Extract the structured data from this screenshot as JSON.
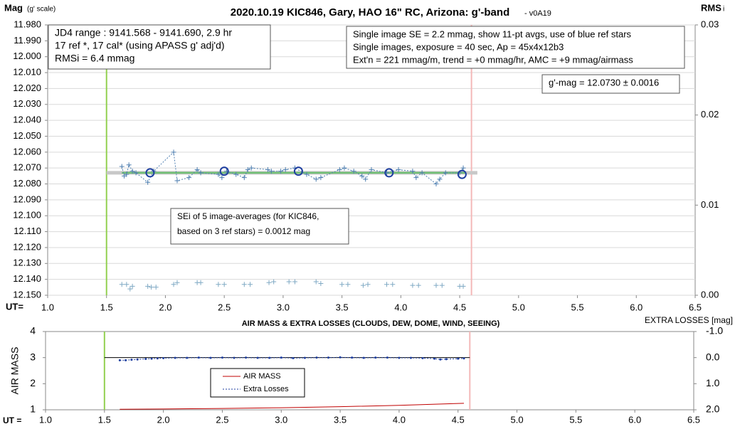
{
  "chart_data": [
    {
      "type": "scatter",
      "title": "2020.10.19 KIC846, Gary, HAO 16\" RC, Arizona: g'-band",
      "subtitle": "- v0A19",
      "y_label": "Mag",
      "y_label_note": "(g' scale)",
      "y2_label": "RMS",
      "y2_label_note": "i",
      "x_label": "UT=",
      "xlim": [
        1.0,
        6.5
      ],
      "xticks": [
        {
          "value": 1,
          "label": "1.0"
        },
        1.5,
        {
          "value": 2,
          "label": "2.0"
        },
        2.5,
        {
          "value": 3,
          "label": "3.0"
        },
        3.5,
        {
          "value": 4,
          "label": "4.0"
        },
        4.5,
        {
          "value": 5,
          "label": "5.0"
        },
        5.5,
        {
          "value": 6,
          "label": "6.0"
        },
        6.5
      ],
      "ylim": [
        11.98,
        12.15
      ],
      "invert_y": true,
      "yticks": [
        {
          "value": 11.98,
          "label": "11.980"
        },
        {
          "value": 11.99,
          "label": "11.990"
        },
        {
          "value": 12.0,
          "label": "12.000"
        },
        {
          "value": 12.01,
          "label": "12.010"
        },
        {
          "value": 12.02,
          "label": "12.020"
        },
        {
          "value": 12.03,
          "label": "12.030"
        },
        {
          "value": 12.04,
          "label": "12.040"
        },
        {
          "value": 12.05,
          "label": "12.050"
        },
        {
          "value": 12.06,
          "label": "12.060"
        },
        {
          "value": 12.07,
          "label": "12.070"
        },
        {
          "value": 12.08,
          "label": "12.080"
        },
        {
          "value": 12.09,
          "label": "12.090"
        },
        {
          "value": 12.1,
          "label": "12.100"
        },
        {
          "value": 12.11,
          "label": "12.110"
        },
        {
          "value": 12.12,
          "label": "12.120"
        },
        {
          "value": 12.13,
          "label": "12.130"
        },
        {
          "value": 12.14,
          "label": "12.140"
        },
        {
          "value": 12.15,
          "label": "12.150"
        }
      ],
      "y2lim": [
        0,
        0.03
      ],
      "y2ticks": [
        {
          "value": 0,
          "label": "0.00"
        },
        0.01,
        0.02,
        0.03
      ],
      "grid": true,
      "vlines": [
        {
          "x": 1.5,
          "color": "#92d050"
        },
        {
          "x": 4.6,
          "color": "#f4b8b8"
        }
      ],
      "series": [
        {
          "color": "#c8c8c8",
          "marker": "none",
          "line": "solid",
          "width": 5,
          "x": [
            1.5,
            4.65
          ],
          "values": [
            12.073,
            12.073
          ]
        },
        {
          "color": "#6fbf73",
          "marker": "none",
          "line": "solid",
          "width": 2.5,
          "x": [
            1.63,
            4.55
          ],
          "values": [
            12.073,
            12.073
          ]
        },
        {
          "color": "#4f7fb0",
          "marker": "plus",
          "line": "dotted",
          "width": 1,
          "x": [
            1.63,
            1.65,
            1.67,
            1.69,
            1.72,
            1.75,
            1.85,
            1.9,
            2.07,
            2.1,
            2.2,
            2.27,
            2.3,
            2.45,
            2.48,
            2.52,
            2.6,
            2.67,
            2.7,
            2.73,
            2.87,
            2.9,
            2.98,
            3.02,
            3.1,
            3.2,
            3.28,
            3.32,
            3.48,
            3.52,
            3.6,
            3.67,
            3.7,
            3.75,
            3.88,
            3.98,
            4.1,
            4.13,
            4.18,
            4.3,
            4.33,
            4.38,
            4.5,
            4.53
          ],
          "values": [
            12.069,
            12.075,
            12.074,
            12.068,
            12.072,
            12.073,
            12.079,
            12.072,
            12.06,
            12.078,
            12.076,
            12.071,
            12.073,
            12.074,
            12.076,
            12.072,
            12.074,
            12.076,
            12.071,
            12.07,
            12.071,
            12.072,
            12.072,
            12.071,
            12.07,
            12.074,
            12.077,
            12.076,
            12.071,
            12.07,
            12.072,
            12.075,
            12.077,
            12.071,
            12.073,
            12.071,
            12.072,
            12.076,
            12.073,
            12.08,
            12.077,
            12.073,
            12.073,
            12.07
          ]
        },
        {
          "color": "#1f3fa0",
          "marker": "circle",
          "line": "none",
          "width": 2,
          "x": [
            1.87,
            2.5,
            3.13,
            3.9,
            4.52
          ],
          "values": [
            12.073,
            12.072,
            12.072,
            12.073,
            12.074
          ]
        },
        {
          "color": "#7fa9c4",
          "marker": "plus",
          "line": "none",
          "width": 1,
          "axis": "y2",
          "x": [
            1.63,
            1.67,
            1.7,
            1.72,
            1.85,
            1.88,
            1.92,
            2.07,
            2.1,
            2.27,
            2.3,
            2.45,
            2.5,
            2.67,
            2.72,
            2.88,
            2.92,
            3.05,
            3.1,
            3.28,
            3.32,
            3.5,
            3.55,
            3.68,
            3.72,
            3.88,
            3.93,
            4.1,
            4.15,
            4.3,
            4.35,
            4.5,
            4.53
          ],
          "values": [
            0.0012,
            0.0012,
            0.0007,
            0.001,
            0.001,
            0.0009,
            0.0009,
            0.0012,
            0.0014,
            0.0014,
            0.0014,
            0.0012,
            0.0012,
            0.0012,
            0.0012,
            0.0014,
            0.0015,
            0.0015,
            0.0015,
            0.0015,
            0.0013,
            0.0012,
            0.0012,
            0.0011,
            0.0012,
            0.0012,
            0.0012,
            0.0011,
            0.0011,
            0.0011,
            0.0011,
            0.001,
            0.001
          ]
        }
      ],
      "annotations": [
        {
          "lines": [
            "JD4 range : 9141.568 - 9141.690,  2.9  hr",
            "17 ref *, 17 cal* (using APASS g' adj'd)",
            "RMSi = 6.4 mmag"
          ]
        },
        {
          "lines": [
            "Single image SE = 2.2 mmag, show  11-pt avgs, use of blue ref stars",
            "Single images, exposure = 40 sec, Ap = 45x4x12b3",
            "Ext'n = 221 mmag/m, trend =  +0 mmag/hr, AMC = +9 mmag/airmass"
          ]
        },
        {
          "lines": [
            "g'-mag = 12.0730 ± 0.0016"
          ]
        },
        {
          "lines": [
            "SEi of 5 image-averages (for KIC846,",
            "based on 3 ref stars) = 0.0012 mag"
          ]
        }
      ]
    },
    {
      "type": "line",
      "title": "AIR MASS & EXTRA LOSSES (CLOUDS, DEW, DOME, WIND, SEEING)",
      "y_label": "AIR MASS",
      "y2_label": "EXTRA LOSSES [mag]",
      "x_label": "UT =",
      "xlim": [
        1.0,
        6.5
      ],
      "xticks": [
        {
          "value": 1,
          "label": "1.0"
        },
        1.5,
        {
          "value": 2,
          "label": "2.0"
        },
        2.5,
        {
          "value": 3,
          "label": "3.0"
        },
        3.5,
        {
          "value": 4,
          "label": "4.0"
        },
        4.5,
        {
          "value": 5,
          "label": "5.0"
        },
        5.5,
        {
          "value": 6,
          "label": "6.0"
        },
        6.5
      ],
      "ylim": [
        1,
        4
      ],
      "yticks": [
        1,
        2,
        3,
        4
      ],
      "y2lim": [
        -1,
        2
      ],
      "invert_y2": true,
      "y2ticks": [
        {
          "value": -1,
          "label": "-1.0"
        },
        {
          "value": 0,
          "label": "0.0"
        },
        {
          "value": 1,
          "label": "1.0"
        },
        {
          "value": 2,
          "label": "2.0"
        }
      ],
      "grid": false,
      "vlines": [
        {
          "x": 1.5,
          "color": "#92d050"
        },
        {
          "x": 4.6,
          "color": "#f4b8b8"
        }
      ],
      "series": [
        {
          "color": "#000000",
          "marker": "none",
          "line": "solid",
          "width": 1,
          "axis": "y2",
          "x": [
            1.5,
            4.6
          ],
          "values": [
            0,
            0
          ]
        },
        {
          "name": "AIR MASS",
          "color": "#c00000",
          "marker": "none",
          "line": "solid",
          "width": 1,
          "x": [
            1.63,
            2.0,
            2.5,
            3.0,
            3.5,
            4.0,
            4.55
          ],
          "values": [
            1.02,
            1.03,
            1.05,
            1.08,
            1.12,
            1.17,
            1.25
          ]
        },
        {
          "name": "Extra Losses",
          "color": "#1f3fa0",
          "marker": "dot",
          "line": "dotted",
          "width": 1,
          "axis": "y2",
          "x": [
            1.63,
            1.68,
            1.73,
            1.78,
            1.85,
            1.9,
            1.95,
            2.0,
            2.1,
            2.2,
            2.3,
            2.4,
            2.5,
            2.6,
            2.7,
            2.8,
            2.9,
            3.0,
            3.1,
            3.2,
            3.3,
            3.4,
            3.5,
            3.6,
            3.7,
            3.8,
            3.9,
            4.0,
            4.1,
            4.2,
            4.3,
            4.35,
            4.4,
            4.5,
            4.55
          ],
          "values": [
            0.1,
            0.1,
            0.08,
            0.07,
            0.05,
            0.04,
            0.03,
            0.02,
            0.01,
            0.01,
            0.0,
            0.01,
            0.0,
            0.01,
            0.0,
            0.01,
            0.01,
            0.0,
            0.02,
            0.01,
            0.0,
            0.0,
            -0.01,
            0.0,
            0.01,
            0.0,
            0.0,
            0.01,
            0.01,
            0.02,
            0.04,
            0.07,
            0.06,
            0.04,
            0.03
          ]
        }
      ]
    }
  ]
}
